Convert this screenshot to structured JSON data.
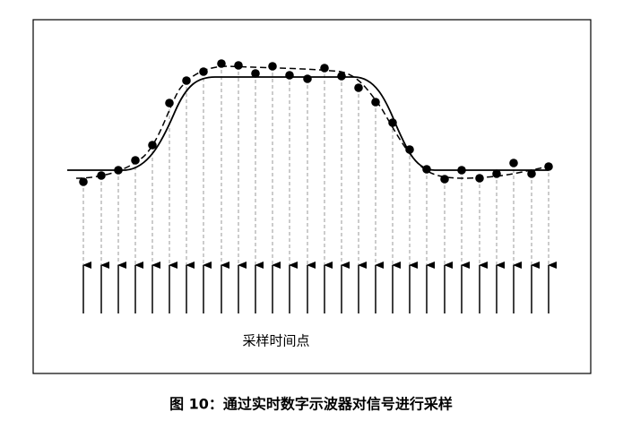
{
  "figure": {
    "axis_label": "采样时间点",
    "caption": "图 10：通过实时数字示波器对信号进行采样"
  }
}
